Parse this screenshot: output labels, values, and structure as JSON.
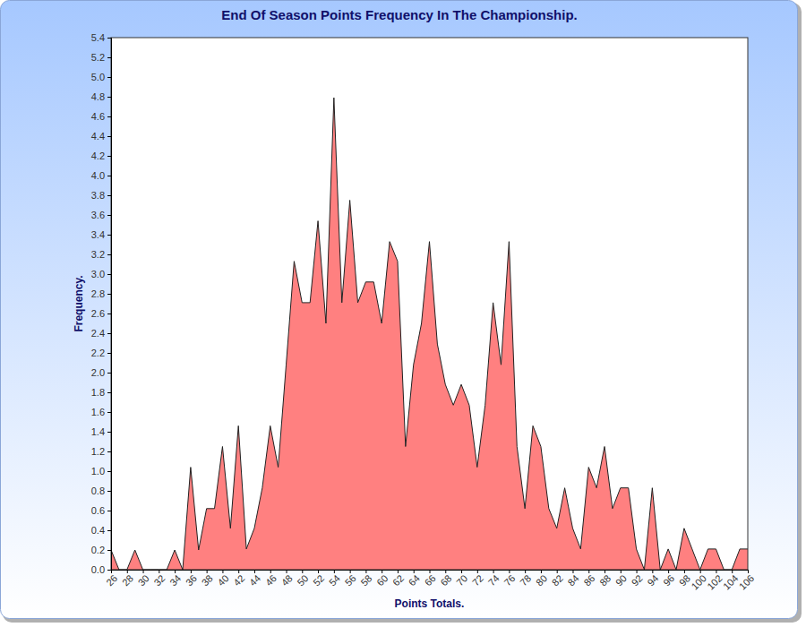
{
  "chart_data": {
    "type": "area",
    "title": "End Of Season Points Frequency In The Championship.",
    "x_label": "Points Totals.",
    "y_label": "Frequency.",
    "color": "#ff8080",
    "x": [
      26,
      27,
      28,
      29,
      30,
      31,
      32,
      33,
      34,
      35,
      36,
      37,
      38,
      39,
      40,
      41,
      42,
      43,
      44,
      45,
      46,
      47,
      48,
      49,
      50,
      51,
      52,
      53,
      54,
      55,
      56,
      57,
      58,
      59,
      60,
      61,
      62,
      63,
      64,
      65,
      66,
      67,
      68,
      69,
      70,
      71,
      72,
      73,
      74,
      75,
      76,
      77,
      78,
      79,
      80,
      81,
      82,
      83,
      84,
      85,
      86,
      87,
      88,
      89,
      90,
      91,
      92,
      93,
      94,
      95,
      96,
      97,
      98,
      99,
      100,
      101,
      102,
      103,
      104,
      105,
      106
    ],
    "values": [
      0.2,
      0,
      0,
      0.2,
      0,
      0,
      0,
      0,
      0.2,
      0,
      1.04,
      0.2,
      0.62,
      0.62,
      1.25,
      0.42,
      1.46,
      0.21,
      0.42,
      0.83,
      1.46,
      1.04,
      2.08,
      3.13,
      2.71,
      2.71,
      3.54,
      2.5,
      4.79,
      2.71,
      3.75,
      2.71,
      2.92,
      2.92,
      2.5,
      3.33,
      3.13,
      1.25,
      2.08,
      2.5,
      3.33,
      2.29,
      1.88,
      1.67,
      1.88,
      1.67,
      1.04,
      1.67,
      2.71,
      2.08,
      3.33,
      1.25,
      0.62,
      1.46,
      1.25,
      0.62,
      0.42,
      0.83,
      0.42,
      0.21,
      1.04,
      0.83,
      1.25,
      0.62,
      0.83,
      0.83,
      0.21,
      0,
      0.83,
      0,
      0.21,
      0,
      0.42,
      0.21,
      0,
      0.21,
      0.21,
      0,
      0,
      0.21,
      0.21
    ],
    "xlim": [
      26,
      106
    ],
    "xticks": [
      26,
      28,
      30,
      32,
      34,
      36,
      38,
      40,
      42,
      44,
      46,
      48,
      50,
      52,
      54,
      56,
      58,
      60,
      62,
      64,
      66,
      68,
      70,
      72,
      74,
      76,
      78,
      80,
      82,
      84,
      86,
      88,
      90,
      92,
      94,
      96,
      98,
      100,
      102,
      104,
      106
    ],
    "ylim": [
      0,
      5.4
    ],
    "yticks": [
      {
        "value": 0,
        "label": "0.0"
      },
      {
        "value": 0.2,
        "label": "0.2"
      },
      {
        "value": 0.4,
        "label": "0.4"
      },
      {
        "value": 0.6,
        "label": "0.6"
      },
      {
        "value": 0.8,
        "label": "0.8"
      },
      {
        "value": 1,
        "label": "1.0"
      },
      {
        "value": 1.2,
        "label": "1.2"
      },
      {
        "value": 1.4,
        "label": "1.4"
      },
      {
        "value": 1.6,
        "label": "1.6"
      },
      {
        "value": 1.8,
        "label": "1.8"
      },
      {
        "value": 2,
        "label": "2.0"
      },
      {
        "value": 2.2,
        "label": "2.2"
      },
      {
        "value": 2.4,
        "label": "2.4"
      },
      {
        "value": 2.6,
        "label": "2.6"
      },
      {
        "value": 2.8,
        "label": "2.8"
      },
      {
        "value": 3,
        "label": "3.0"
      },
      {
        "value": 3.2,
        "label": "3.2"
      },
      {
        "value": 3.4,
        "label": "3.4"
      },
      {
        "value": 3.6,
        "label": "3.6"
      },
      {
        "value": 3.8,
        "label": "3.8"
      },
      {
        "value": 4,
        "label": "4.0"
      },
      {
        "value": 4.2,
        "label": "4.2"
      },
      {
        "value": 4.4,
        "label": "4.4"
      },
      {
        "value": 4.6,
        "label": "4.6"
      },
      {
        "value": 4.8,
        "label": "4.8"
      },
      {
        "value": 5,
        "label": "5.0"
      },
      {
        "value": 5.2,
        "label": "5.2"
      },
      {
        "value": 5.4,
        "label": "5.4"
      }
    ],
    "grid": false
  }
}
